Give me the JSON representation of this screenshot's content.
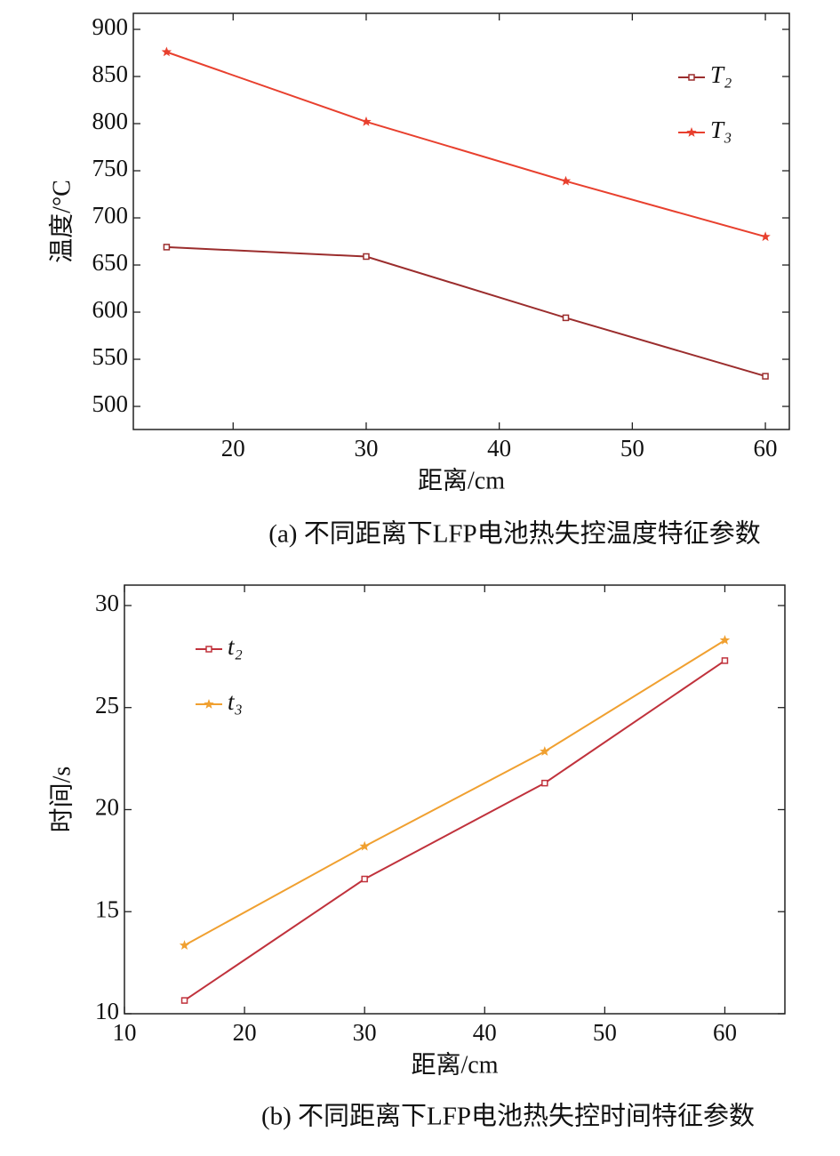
{
  "chart_data": [
    {
      "type": "line",
      "caption": "(a) 不同距离下LFP电池热失控温度特征参数",
      "xlabel": "距离/cm",
      "ylabel": "温度/°C",
      "x": [
        15,
        30,
        45,
        60
      ],
      "series": [
        {
          "name": "T₂",
          "color": "#9b2d2d",
          "marker": "square",
          "values": [
            669,
            659,
            594,
            532
          ]
        },
        {
          "name": "T₃",
          "color": "#e8402e",
          "marker": "star",
          "values": [
            876,
            802,
            739,
            680
          ]
        }
      ],
      "xlim": [
        12.5,
        61.8
      ],
      "xticks": [
        20,
        30,
        40,
        50,
        60
      ],
      "ylim": [
        475.5,
        917
      ],
      "yticks": [
        500,
        550,
        600,
        650,
        700,
        750,
        800,
        850,
        900
      ],
      "legend": "upper right"
    },
    {
      "type": "line",
      "caption": "(b) 不同距离下LFP电池热失控时间特征参数",
      "xlabel": "距离/cm",
      "ylabel": "时间/s",
      "x": [
        15,
        30,
        45,
        60
      ],
      "series": [
        {
          "name": "t₂",
          "color": "#c0323c",
          "marker": "square",
          "values": [
            10.65,
            16.6,
            21.3,
            27.3
          ]
        },
        {
          "name": "t₃",
          "color": "#f0a030",
          "marker": "star",
          "values": [
            13.35,
            18.2,
            22.85,
            28.3
          ]
        }
      ],
      "xlim": [
        10,
        65
      ],
      "xticks": [
        10,
        20,
        30,
        40,
        50,
        60
      ],
      "ylim": [
        10,
        31
      ],
      "yticks": [
        10,
        15,
        20,
        25,
        30
      ],
      "legend": "upper left"
    }
  ]
}
